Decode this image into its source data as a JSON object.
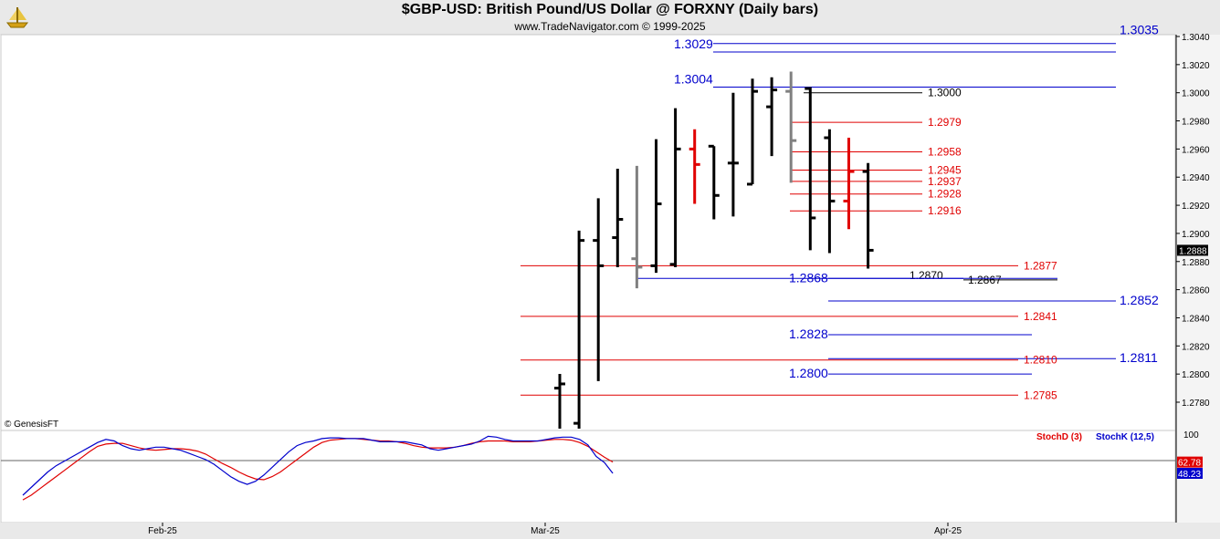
{
  "header": {
    "title": "$GBP-USD:  British Pound/US Dollar @ FORXNY  (Daily bars)",
    "subtitle": "www.TradeNavigator.com © 1999-2025",
    "logo_icon": "trade-navigator-ship-icon"
  },
  "copyright": "© GenesisFT",
  "colors": {
    "bar_up": "#000000",
    "bar_gray": "#808080",
    "bar_red": "#e00000",
    "level_red": "#e00000",
    "level_blue": "#0000cc",
    "level_black": "#000000",
    "stoch_d": "#e00000",
    "stoch_k": "#0000cc"
  },
  "chart_data": [
    {
      "type": "ohlc",
      "title": "$GBP-USD:  British Pound/US Dollar @ FORXNY  (Daily bars)",
      "y_axis": {
        "range": [
          1.2758,
          1.3046
        ],
        "ticks": [
          "1.3040",
          "1.3020",
          "1.3000",
          "1.2980",
          "1.2960",
          "1.2940",
          "1.2920",
          "1.2900",
          "1.2880",
          "1.2860",
          "1.2840",
          "1.2820",
          "1.2800",
          "1.2780"
        ],
        "last_price_label": "1.2888"
      },
      "x_axis": {
        "labels": [
          "Feb-25",
          "Mar-25",
          "Apr-25"
        ]
      },
      "bars": [
        {
          "h": 1.28,
          "l": 1.277,
          "o": 1.279,
          "c": 1.2793,
          "color": "black"
        },
        {
          "h": 1.2902,
          "l": 1.276,
          "o": 1.2765,
          "c": 1.2895,
          "color": "black"
        },
        {
          "h": 1.2925,
          "l": 1.2795,
          "o": 1.2895,
          "c": 1.2877,
          "color": "black"
        },
        {
          "h": 1.2946,
          "l": 1.2876,
          "o": 1.2897,
          "c": 1.291,
          "color": "black"
        },
        {
          "h": 1.2948,
          "l": 1.2861,
          "o": 1.2882,
          "c": 1.2876,
          "color": "gray"
        },
        {
          "h": 1.2967,
          "l": 1.2872,
          "o": 1.2877,
          "c": 1.2921,
          "color": "black"
        },
        {
          "h": 1.2989,
          "l": 1.2876,
          "o": 1.2878,
          "c": 1.296,
          "color": "black"
        },
        {
          "h": 1.2974,
          "l": 1.2921,
          "o": 1.296,
          "c": 1.2949,
          "color": "red"
        },
        {
          "h": 1.2962,
          "l": 1.291,
          "o": 1.2962,
          "c": 1.2927,
          "color": "black"
        },
        {
          "h": 1.3,
          "l": 1.2912,
          "o": 1.295,
          "c": 1.295,
          "color": "black"
        },
        {
          "h": 1.301,
          "l": 1.2935,
          "o": 1.2935,
          "c": 1.3001,
          "color": "black"
        },
        {
          "h": 1.3011,
          "l": 1.2955,
          "o": 1.299,
          "c": 1.3002,
          "color": "black"
        },
        {
          "h": 1.3015,
          "l": 1.2936,
          "o": 1.3001,
          "c": 1.2966,
          "color": "gray"
        },
        {
          "h": 1.3004,
          "l": 1.2888,
          "o": 1.3003,
          "c": 1.2911,
          "color": "black"
        },
        {
          "h": 1.2974,
          "l": 1.2886,
          "o": 1.2968,
          "c": 1.2923,
          "color": "black"
        },
        {
          "h": 1.2968,
          "l": 1.2903,
          "o": 1.2923,
          "c": 1.2944,
          "color": "red"
        },
        {
          "h": 1.295,
          "l": 1.2875,
          "o": 1.2944,
          "c": 1.2888,
          "color": "black"
        }
      ],
      "levels": [
        {
          "value": 1.3035,
          "label": "1.3035",
          "color": "blue",
          "side": "right"
        },
        {
          "value": 1.3029,
          "label": "1.3029",
          "color": "blue",
          "side": "left"
        },
        {
          "value": 1.3004,
          "label": "1.3004",
          "color": "blue",
          "side": "left"
        },
        {
          "value": 1.3,
          "label": "1.3000",
          "color": "black",
          "side": "right"
        },
        {
          "value": 1.2979,
          "label": "1.2979",
          "color": "red",
          "side": "right"
        },
        {
          "value": 1.2958,
          "label": "1.2958",
          "color": "red",
          "side": "right"
        },
        {
          "value": 1.2945,
          "label": "1.2945",
          "color": "red",
          "side": "right"
        },
        {
          "value": 1.2937,
          "label": "1.2937",
          "color": "red",
          "side": "right"
        },
        {
          "value": 1.2928,
          "label": "1.2928",
          "color": "red",
          "side": "right"
        },
        {
          "value": 1.2916,
          "label": "1.2916",
          "color": "red",
          "side": "right"
        },
        {
          "value": 1.2877,
          "label": "1.2877",
          "color": "red",
          "side": "right"
        },
        {
          "value": 1.287,
          "label": "1.2870",
          "color": "black",
          "side": "right"
        },
        {
          "value": 1.2868,
          "label": "1.2868",
          "color": "blue",
          "side": "left"
        },
        {
          "value": 1.2867,
          "label": "1.2867",
          "color": "black",
          "side": "right"
        },
        {
          "value": 1.2852,
          "label": "1.2852",
          "color": "blue",
          "side": "right"
        },
        {
          "value": 1.2841,
          "label": "1.2841",
          "color": "red",
          "side": "right"
        },
        {
          "value": 1.2828,
          "label": "1.2828",
          "color": "blue",
          "side": "left"
        },
        {
          "value": 1.2811,
          "label": "1.2811",
          "color": "blue",
          "side": "right"
        },
        {
          "value": 1.281,
          "label": "1.2810",
          "color": "red",
          "side": "right"
        },
        {
          "value": 1.28,
          "label": "1.2800",
          "color": "blue",
          "side": "left"
        },
        {
          "value": 1.2785,
          "label": "1.2785",
          "color": "red",
          "side": "right"
        }
      ]
    },
    {
      "type": "line",
      "title": "",
      "y_axis": {
        "range": [
          0,
          110
        ],
        "ticks": [
          "100"
        ]
      },
      "series": [
        {
          "name": "StochD (3)",
          "color": "red",
          "last_label": "62.78",
          "values": [
            14,
            20,
            28,
            36,
            44,
            52,
            60,
            68,
            76,
            83,
            86,
            87,
            87,
            84,
            81,
            79,
            78,
            79,
            80,
            80,
            79,
            77,
            73,
            67,
            61,
            56,
            50,
            45,
            41,
            40,
            44,
            50,
            58,
            66,
            74,
            82,
            88,
            91,
            92,
            93,
            93,
            92,
            91,
            90,
            90,
            89,
            87,
            84,
            82,
            81,
            81,
            81,
            82,
            84,
            87,
            89,
            90,
            90,
            90,
            89,
            89,
            89,
            90,
            91,
            92,
            92,
            91,
            88,
            83,
            76,
            69,
            62.78
          ]
        },
        {
          "name": "StochK (12,5)",
          "color": "blue",
          "last_label": "48.23",
          "values": [
            20,
            30,
            40,
            50,
            58,
            64,
            70,
            76,
            82,
            88,
            92,
            90,
            84,
            80,
            78,
            80,
            82,
            82,
            80,
            78,
            74,
            70,
            66,
            60,
            52,
            44,
            38,
            34,
            38,
            46,
            56,
            66,
            76,
            84,
            88,
            90,
            93,
            94,
            94,
            93,
            93,
            93,
            91,
            89,
            89,
            89,
            89,
            87,
            85,
            80,
            78,
            80,
            82,
            84,
            86,
            90,
            96,
            95,
            92,
            90,
            90,
            90,
            90,
            92,
            94,
            95,
            95,
            92,
            85,
            70,
            62,
            48.23
          ]
        }
      ]
    }
  ]
}
